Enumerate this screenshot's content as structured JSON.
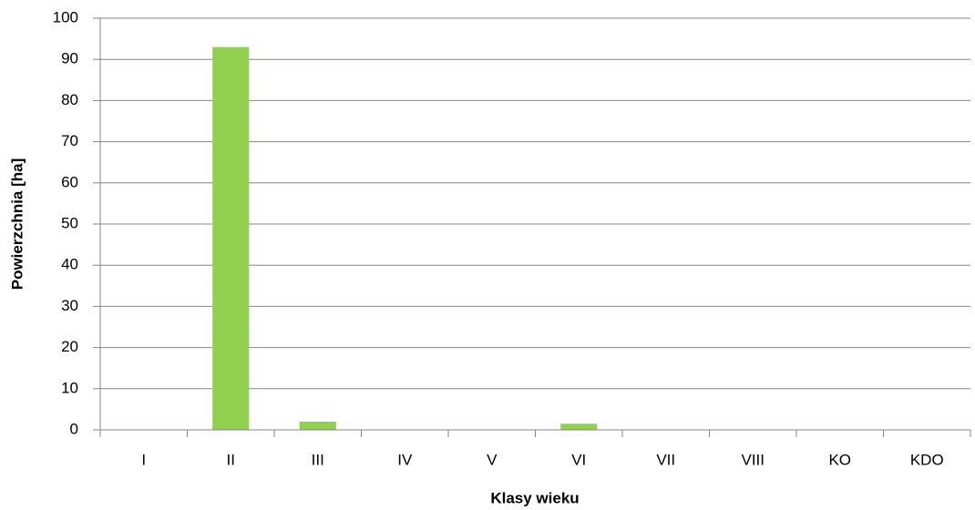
{
  "chart_data": {
    "type": "bar",
    "x_label": "Klasy wieku",
    "y_label": "Powierzchnia [ha]",
    "categories": [
      "I",
      "II",
      "III",
      "IV",
      "V",
      "VI",
      "VII",
      "VIII",
      "KO",
      "KDO"
    ],
    "values": [
      0,
      93,
      2,
      0,
      0,
      1.5,
      0,
      0,
      0,
      0
    ],
    "color": "#92d050",
    "ylim": [
      0,
      100
    ],
    "yticks": [
      0,
      10,
      20,
      30,
      40,
      50,
      60,
      70,
      80,
      90,
      100
    ],
    "grid": true
  }
}
